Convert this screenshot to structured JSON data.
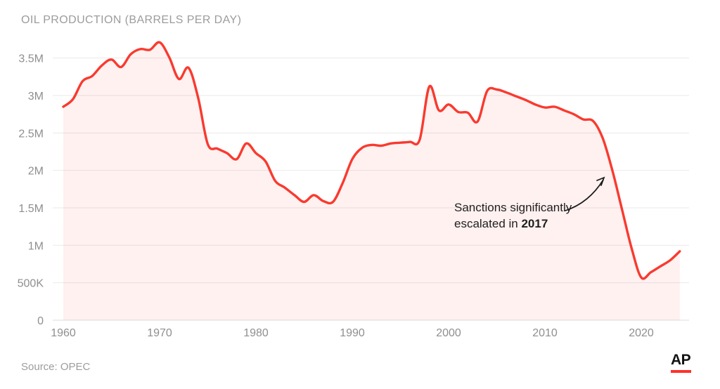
{
  "header": {
    "title": "OIL PRODUCTION (BARRELS PER DAY)"
  },
  "annotation": {
    "line1": "Sanctions significantly",
    "line2_prefix": "escalated in ",
    "line2_bold": "2017"
  },
  "footer": {
    "source": "Source: OPEC",
    "logo_text": "AP"
  },
  "colors": {
    "line": "#f93a2f",
    "area_fill": "rgba(249,58,47,0.07)",
    "grid": "#e9e9e9",
    "baseline": "#dcdcdc",
    "axis_text": "#8f8f8f",
    "title_text": "#9c9c9c",
    "source_text": "#9c9c9c",
    "annotation_text": "#1f1f1f",
    "arrow": "#1a1a1a",
    "logo_bar": "#ff312b"
  },
  "chart_data": {
    "type": "area",
    "title": "OIL PRODUCTION (BARRELS PER DAY)",
    "unit": "million barrels per day",
    "grid": "horizontal",
    "legend": false,
    "xlim": [
      1960,
      2024
    ],
    "ylim": [
      0,
      3.8
    ],
    "x_ticks": [
      {
        "label": "1960",
        "year": 1960
      },
      {
        "label": "1970",
        "year": 1970
      },
      {
        "label": "1980",
        "year": 1980
      },
      {
        "label": "1990",
        "year": 1990
      },
      {
        "label": "2000",
        "year": 2000
      },
      {
        "label": "2010",
        "year": 2010
      },
      {
        "label": "2020",
        "year": 2020
      }
    ],
    "y_ticks": [
      {
        "label": "0",
        "value": 0
      },
      {
        "label": "500K",
        "value": 0.5
      },
      {
        "label": "1M",
        "value": 1
      },
      {
        "label": "1.5M",
        "value": 1.5
      },
      {
        "label": "2M",
        "value": 2
      },
      {
        "label": "2.5M",
        "value": 2.5
      },
      {
        "label": "3M",
        "value": 3
      },
      {
        "label": "3.5M",
        "value": 3.5
      }
    ],
    "x": [
      1960,
      1961,
      1962,
      1963,
      1964,
      1965,
      1966,
      1967,
      1968,
      1969,
      1970,
      1971,
      1972,
      1973,
      1974,
      1975,
      1976,
      1977,
      1978,
      1979,
      1980,
      1981,
      1982,
      1983,
      1984,
      1985,
      1986,
      1987,
      1988,
      1989,
      1990,
      1991,
      1992,
      1993,
      1994,
      1995,
      1996,
      1997,
      1998,
      1999,
      2000,
      2001,
      2002,
      2003,
      2004,
      2005,
      2006,
      2007,
      2008,
      2009,
      2010,
      2011,
      2012,
      2013,
      2014,
      2015,
      2016,
      2017,
      2018,
      2019,
      2020,
      2021,
      2022,
      2023,
      2024
    ],
    "values": [
      2.85,
      2.95,
      3.19,
      3.26,
      3.4,
      3.48,
      3.38,
      3.55,
      3.62,
      3.61,
      3.71,
      3.51,
      3.22,
      3.37,
      2.97,
      2.35,
      2.29,
      2.23,
      2.15,
      2.36,
      2.23,
      2.12,
      1.86,
      1.77,
      1.67,
      1.58,
      1.67,
      1.59,
      1.58,
      1.83,
      2.15,
      2.3,
      2.34,
      2.33,
      2.36,
      2.37,
      2.38,
      2.41,
      3.12,
      2.8,
      2.88,
      2.78,
      2.77,
      2.65,
      3.06,
      3.08,
      3.04,
      2.99,
      2.94,
      2.88,
      2.84,
      2.85,
      2.8,
      2.75,
      2.68,
      2.66,
      2.43,
      2.0,
      1.48,
      0.96,
      0.57,
      0.64,
      0.72,
      0.8,
      0.92
    ],
    "annotations": [
      {
        "text": "Sanctions significantly escalated in 2017",
        "target_year": 2017
      }
    ]
  }
}
